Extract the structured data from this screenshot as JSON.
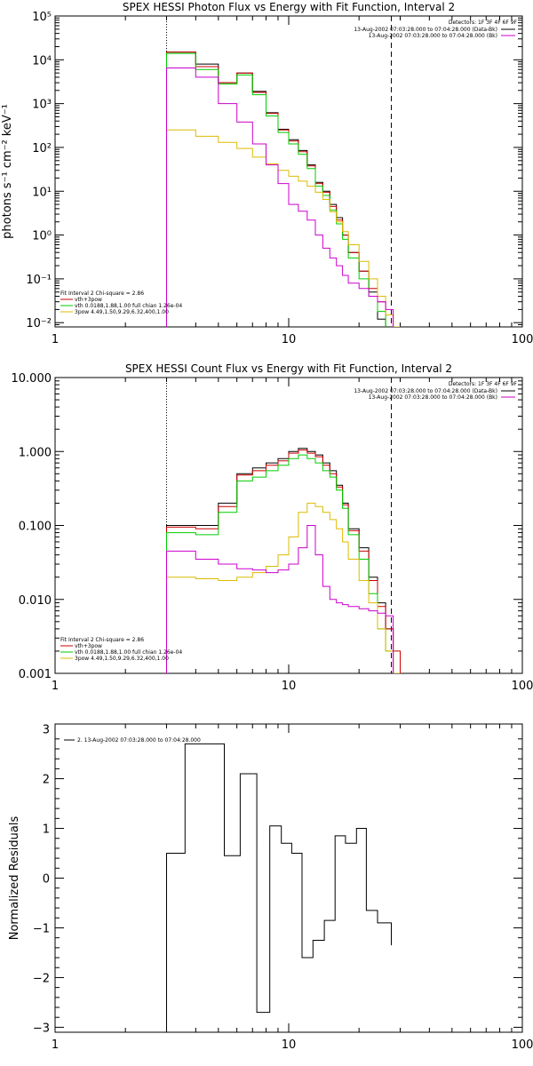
{
  "chart_data": [
    {
      "type": "line",
      "title": "SPEX HESSI Photon Flux vs Energy with Fit Function, Interval 2",
      "xlabel": "",
      "ylabel": "photons s⁻¹ cm⁻² keV⁻¹",
      "xscale": "log",
      "yscale": "log",
      "xlim": [
        1,
        100
      ],
      "ylim": [
        0.008,
        100000
      ],
      "x_ticks": [
        "1",
        "10",
        "100"
      ],
      "y_ticks": [
        "10⁻²",
        "10⁻¹",
        "10⁰",
        "10¹",
        "10²",
        "10³",
        "10⁴",
        "10⁵"
      ],
      "vlines": [
        {
          "x": 3,
          "style": "dotted",
          "color": "#000000"
        },
        {
          "x": 27.5,
          "style": "dashed",
          "color": "#000000"
        }
      ],
      "top_legend": {
        "header": "Detectors: 1F 3F 4F 6F 9F",
        "entries": [
          {
            "text": "13-Aug-2002 07:03:28.000 to 07:04:28.000 (Data-Bk)",
            "color": "#000000"
          },
          {
            "text": "13-Aug-2002 07:03:28.000 to 07:04:28.000 (Bk)",
            "color": "#cc00cc"
          }
        ]
      },
      "bottom_legend": {
        "header": "Fit Interval 2   Chi-square = 2.86",
        "entries": [
          {
            "text": "vth+3pow",
            "color": "#cc0000"
          },
          {
            "text": "vth 0.0188,1.88,1.00  full chian 1.26e-04",
            "color": "#00cc00"
          },
          {
            "text": "3pow 4.49,1.50,9.29,6.32,400,1.00",
            "color": "#ddbb00"
          }
        ]
      },
      "edges": [
        3,
        4,
        5,
        6,
        7,
        8,
        9,
        10,
        11,
        12,
        13,
        14,
        15,
        16,
        17,
        18,
        20,
        22,
        24,
        26,
        28,
        30,
        32,
        34
      ],
      "series": [
        {
          "name": "",
          "color": "#000000",
          "values": [
            15000,
            8000,
            3000,
            5000,
            1900,
            620,
            260,
            150,
            85,
            40,
            16,
            10,
            5,
            2.5,
            1.0,
            0.4,
            0.15,
            0.05,
            0.012
          ]
        },
        {
          "name": "",
          "color": "#cc0000",
          "values": [
            15000,
            7000,
            3000,
            5000,
            1800,
            600,
            250,
            140,
            80,
            38,
            15,
            9.5,
            4.5,
            2.2,
            1.0,
            0.4,
            0.15,
            0.06,
            0.03,
            0.015,
            0.008
          ]
        },
        {
          "name": "",
          "color": "#00cc00",
          "values": [
            14000,
            6000,
            2800,
            4500,
            1600,
            520,
            220,
            120,
            70,
            33,
            13,
            8,
            3.7,
            1.8,
            0.8,
            0.3,
            0.1,
            0.04,
            0.018
          ]
        },
        {
          "name": "",
          "color": "#ddbb00",
          "values": [
            250,
            180,
            130,
            95,
            60,
            42,
            30,
            22,
            17,
            13,
            9.5,
            6.5,
            3.4,
            2.0,
            1.2,
            0.6,
            0.25,
            0.1,
            0.04,
            0.015,
            0.008
          ]
        },
        {
          "name": "",
          "color": "#cc00cc",
          "values": [
            6500,
            4000,
            1000,
            380,
            120,
            40,
            15,
            5,
            3.5,
            2.2,
            1.0,
            0.5,
            0.3,
            0.2,
            0.12,
            0.08,
            0.06,
            0.04,
            0.03,
            0.02
          ]
        }
      ]
    },
    {
      "type": "line",
      "title": "SPEX HESSI Count Flux vs Energy with Fit Function, Interval 2",
      "xlabel": "",
      "ylabel": "",
      "xscale": "log",
      "yscale": "log",
      "xlim": [
        1,
        100
      ],
      "ylim": [
        0.001,
        10
      ],
      "x_ticks": [
        "1",
        "10",
        "100"
      ],
      "y_ticks": [
        "0.001",
        "0.010",
        "0.100",
        "1.000",
        "10.000"
      ],
      "vlines": [
        {
          "x": 3,
          "style": "dotted",
          "color": "#000000"
        },
        {
          "x": 27.5,
          "style": "dashed",
          "color": "#000000"
        }
      ],
      "top_legend": {
        "header": "Detectors: 1F 3F 4F 6F 9F",
        "entries": [
          {
            "text": "13-Aug-2002 07:03:28.000 to 07:04:28.000 (Data-Bk)",
            "color": "#000000"
          },
          {
            "text": "13-Aug-2002 07:03:28.000 to 07:04:28.000 (Bk)",
            "color": "#cc00cc"
          }
        ]
      },
      "bottom_legend": {
        "header": "Fit Interval 2   Chi-square = 2.86",
        "entries": [
          {
            "text": "vth+3pow",
            "color": "#cc0000"
          },
          {
            "text": "vth 0.0188,1.88,1.00  full chian 1.26e-04",
            "color": "#00cc00"
          },
          {
            "text": "3pow 4.49,1.50,9.29,6.32,400,1.00",
            "color": "#ddbb00"
          }
        ]
      },
      "edges": [
        3,
        4,
        5,
        6,
        7,
        8,
        9,
        10,
        11,
        12,
        13,
        14,
        15,
        16,
        17,
        18,
        20,
        22,
        24,
        26,
        28,
        30,
        32,
        34
      ],
      "series": [
        {
          "name": "",
          "color": "#000000",
          "values": [
            0.1,
            0.1,
            0.2,
            0.5,
            0.6,
            0.7,
            0.8,
            1.0,
            1.1,
            1.0,
            0.9,
            0.7,
            0.55,
            0.35,
            0.2,
            0.09,
            0.05,
            0.02,
            0.009,
            0.004
          ]
        },
        {
          "name": "",
          "color": "#cc0000",
          "values": [
            0.095,
            0.09,
            0.18,
            0.48,
            0.55,
            0.65,
            0.75,
            0.95,
            1.05,
            0.95,
            0.85,
            0.65,
            0.5,
            0.33,
            0.19,
            0.085,
            0.045,
            0.018,
            0.008,
            0.004,
            0.002
          ]
        },
        {
          "name": "",
          "color": "#00cc00",
          "values": [
            0.08,
            0.075,
            0.15,
            0.4,
            0.45,
            0.55,
            0.65,
            0.8,
            0.9,
            0.8,
            0.7,
            0.55,
            0.45,
            0.3,
            0.17,
            0.075,
            0.035,
            0.012,
            0.004,
            0.002
          ]
        },
        {
          "name": "",
          "color": "#ddbb00",
          "values": [
            0.02,
            0.019,
            0.018,
            0.02,
            0.023,
            0.028,
            0.04,
            0.07,
            0.15,
            0.2,
            0.18,
            0.15,
            0.12,
            0.09,
            0.06,
            0.035,
            0.018,
            0.009,
            0.004,
            0.002,
            0.001
          ]
        },
        {
          "name": "",
          "color": "#cc00cc",
          "values": [
            0.045,
            0.035,
            0.03,
            0.026,
            0.025,
            0.023,
            0.025,
            0.03,
            0.05,
            0.1,
            0.04,
            0.015,
            0.01,
            0.009,
            0.0085,
            0.008,
            0.0075,
            0.007,
            0.0065,
            0.006
          ]
        }
      ]
    },
    {
      "type": "line",
      "title": "",
      "xlabel": "",
      "ylabel": "Normalized Residuals",
      "xscale": "log",
      "yscale": "linear",
      "xlim": [
        1,
        100
      ],
      "ylim": [
        -3.1,
        3.1
      ],
      "x_ticks": [
        "1",
        "10",
        "100"
      ],
      "y_ticks": [
        "−3",
        "−2",
        "−1",
        "0",
        "1",
        "2",
        "3"
      ],
      "legend_entries": [
        {
          "text": "2. 13-Aug-2002 07:03:28.000 to 07:04:28.000",
          "color": "#000000"
        }
      ],
      "edges": [
        3,
        3.6,
        4.5,
        5.3,
        6.2,
        7.3,
        8.3,
        9.3,
        10.3,
        11.4,
        12.7,
        14.2,
        15.8,
        17.5,
        19.5,
        21.5,
        24,
        27.5
      ],
      "series": [
        {
          "name": "",
          "color": "#000000",
          "values": [
            0.5,
            2.7,
            2.7,
            0.45,
            2.1,
            -2.7,
            1.05,
            0.7,
            0.5,
            -1.6,
            -1.25,
            -0.85,
            0.85,
            0.7,
            1.0,
            -0.65,
            -0.9,
            -1.35
          ]
        }
      ]
    }
  ]
}
